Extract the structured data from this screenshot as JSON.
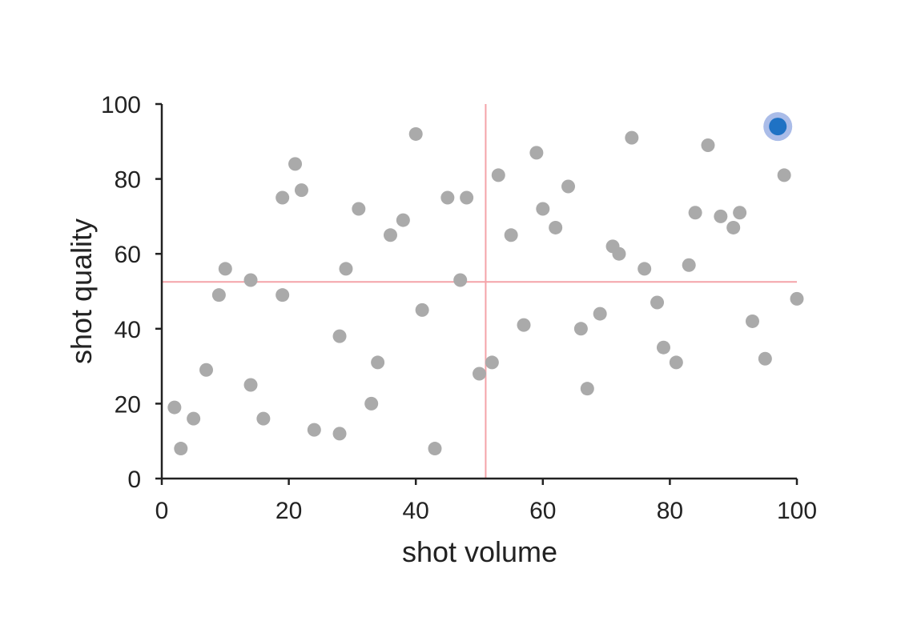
{
  "chart_data": {
    "type": "scatter",
    "xlabel": "shot volume",
    "ylabel": "shot quality",
    "xlim": [
      0,
      100
    ],
    "ylim": [
      0,
      100
    ],
    "xticks": [
      "0",
      "20",
      "40",
      "60",
      "80",
      "100"
    ],
    "yticks": [
      "0",
      "20",
      "40",
      "60",
      "80",
      "100"
    ],
    "grid": false,
    "reference_lines": {
      "x": 51,
      "y": 52.5,
      "color": "#f4a3a8"
    },
    "point_color": "#aaaaaa",
    "highlight_color": "#1f72c4",
    "highlight_ring_color": "#8ea6e0",
    "points": [
      {
        "x": 2,
        "y": 19
      },
      {
        "x": 3,
        "y": 8
      },
      {
        "x": 5,
        "y": 16
      },
      {
        "x": 7,
        "y": 29
      },
      {
        "x": 9,
        "y": 49
      },
      {
        "x": 10,
        "y": 56
      },
      {
        "x": 14,
        "y": 53
      },
      {
        "x": 14,
        "y": 25
      },
      {
        "x": 16,
        "y": 16
      },
      {
        "x": 19,
        "y": 75
      },
      {
        "x": 19,
        "y": 49
      },
      {
        "x": 21,
        "y": 84
      },
      {
        "x": 22,
        "y": 77
      },
      {
        "x": 24,
        "y": 13
      },
      {
        "x": 28,
        "y": 38
      },
      {
        "x": 28,
        "y": 12
      },
      {
        "x": 29,
        "y": 56
      },
      {
        "x": 31,
        "y": 72
      },
      {
        "x": 33,
        "y": 20
      },
      {
        "x": 34,
        "y": 31
      },
      {
        "x": 36,
        "y": 65
      },
      {
        "x": 38,
        "y": 69
      },
      {
        "x": 40,
        "y": 92
      },
      {
        "x": 41,
        "y": 45
      },
      {
        "x": 43,
        "y": 8
      },
      {
        "x": 45,
        "y": 75
      },
      {
        "x": 47,
        "y": 53
      },
      {
        "x": 48,
        "y": 75
      },
      {
        "x": 50,
        "y": 28
      },
      {
        "x": 52,
        "y": 31
      },
      {
        "x": 53,
        "y": 81
      },
      {
        "x": 55,
        "y": 65
      },
      {
        "x": 57,
        "y": 41
      },
      {
        "x": 59,
        "y": 87
      },
      {
        "x": 60,
        "y": 72
      },
      {
        "x": 62,
        "y": 67
      },
      {
        "x": 64,
        "y": 78
      },
      {
        "x": 66,
        "y": 40
      },
      {
        "x": 67,
        "y": 24
      },
      {
        "x": 69,
        "y": 44
      },
      {
        "x": 71,
        "y": 62
      },
      {
        "x": 72,
        "y": 60
      },
      {
        "x": 74,
        "y": 91
      },
      {
        "x": 76,
        "y": 56
      },
      {
        "x": 78,
        "y": 47
      },
      {
        "x": 79,
        "y": 35
      },
      {
        "x": 81,
        "y": 31
      },
      {
        "x": 83,
        "y": 57
      },
      {
        "x": 84,
        "y": 71
      },
      {
        "x": 86,
        "y": 89
      },
      {
        "x": 88,
        "y": 70
      },
      {
        "x": 90,
        "y": 67
      },
      {
        "x": 91,
        "y": 71
      },
      {
        "x": 93,
        "y": 42
      },
      {
        "x": 95,
        "y": 32
      },
      {
        "x": 98,
        "y": 81
      },
      {
        "x": 100,
        "y": 48
      }
    ],
    "highlight_point": {
      "x": 97,
      "y": 94
    }
  }
}
